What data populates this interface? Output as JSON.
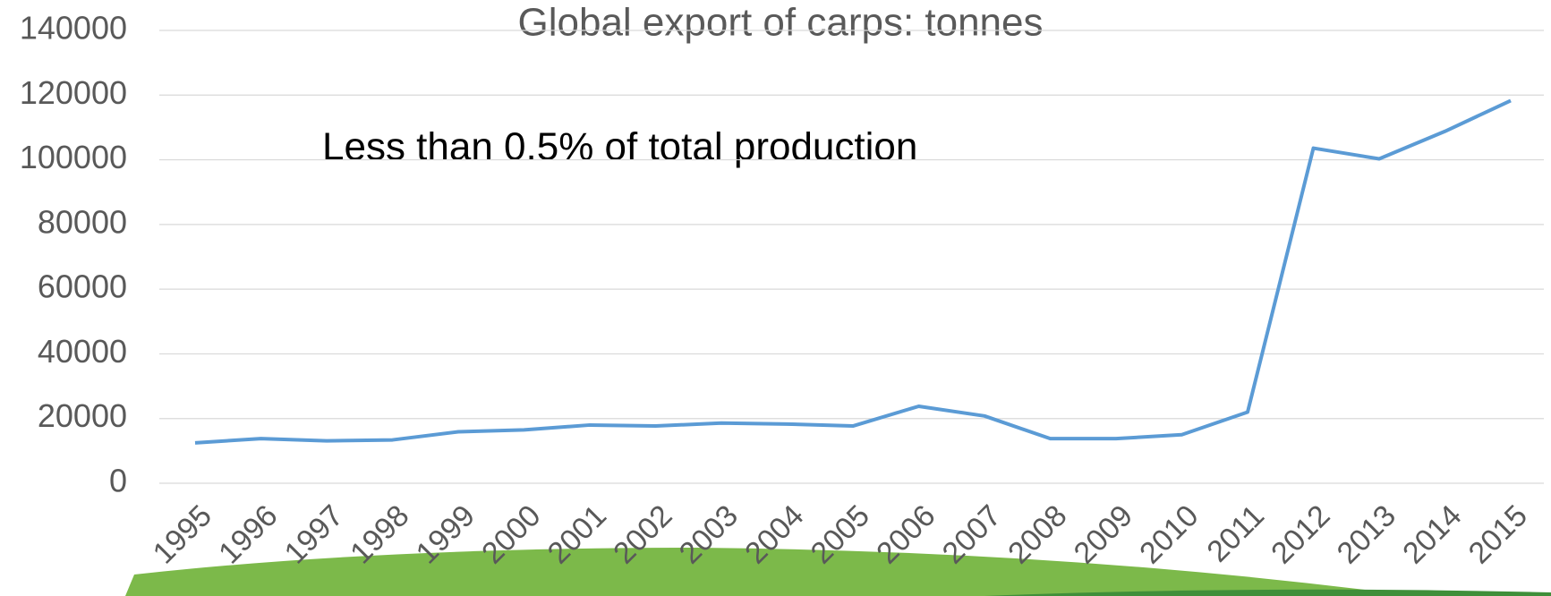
{
  "chart_data": {
    "type": "line",
    "title": "Global export of carps: tonnes",
    "annotation": "Less than 0.5% of total production",
    "categories": [
      "1995",
      "1996",
      "1997",
      "1998",
      "1999",
      "2000",
      "2001",
      "2002",
      "2003",
      "2004",
      "2005",
      "2006",
      "2007",
      "2008",
      "2009",
      "2010",
      "2011",
      "2012",
      "2013",
      "2014",
      "2015"
    ],
    "series": [
      {
        "name": "Global export of carps",
        "color": "#5b9bd5",
        "values": [
          12500,
          13800,
          13100,
          13400,
          15900,
          16500,
          18000,
          17700,
          18600,
          18300,
          17700,
          23800,
          20800,
          13800,
          13800,
          15000,
          22000,
          103600,
          100300,
          108800,
          118300
        ]
      }
    ],
    "ylim": [
      0,
      140000
    ],
    "yticks": [
      0,
      20000,
      40000,
      60000,
      80000,
      100000,
      120000,
      140000
    ],
    "grid": true
  }
}
